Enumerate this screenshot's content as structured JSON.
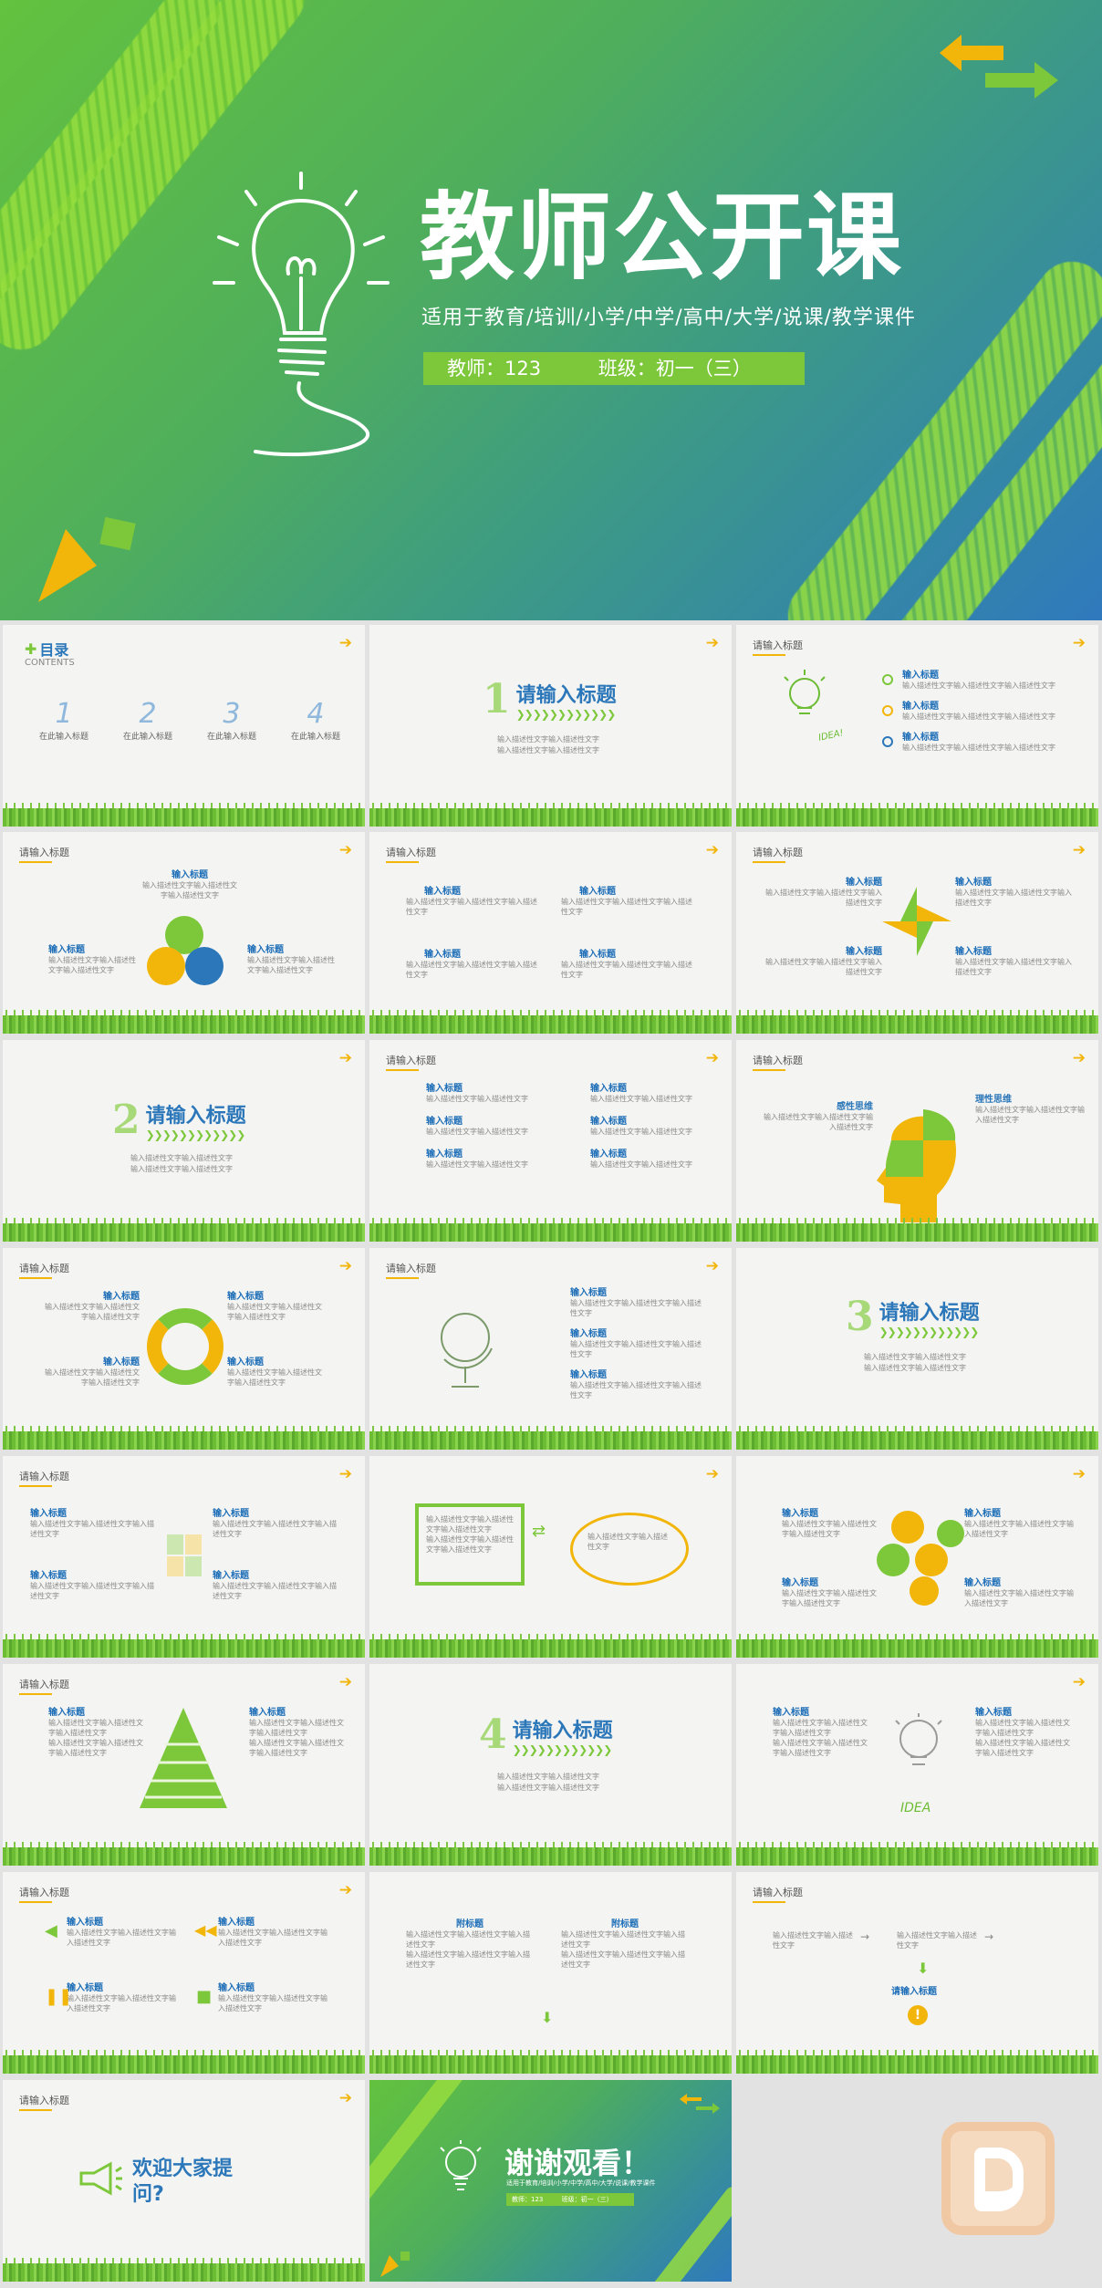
{
  "cover": {
    "title": "教师公开课",
    "subtitle": "适用于教育/培训/小学/中学/高中/大学/说课/教学课件",
    "teacher": "教师：123",
    "class": "班级：初一（三）"
  },
  "common": {
    "slide_header": "请输入标题",
    "input_heading": "输入标题",
    "body_text": "输入描述性文字输入描述性文字输入描述性文字",
    "body_short": "输入描述性文字输入描述性文字",
    "section_title": "请输入标题"
  },
  "toc": {
    "title": "目录",
    "subtitle": "CONTENTS",
    "items": [
      {
        "num": "1",
        "label": "在此输入标题"
      },
      {
        "num": "2",
        "label": "在此输入标题"
      },
      {
        "num": "3",
        "label": "在此输入标题"
      },
      {
        "num": "4",
        "label": "在此输入标题"
      }
    ]
  },
  "sections": [
    "1",
    "2",
    "3",
    "4"
  ],
  "head_labels": {
    "left": "感性思维",
    "right": "理性思维"
  },
  "idea_label": "IDEA!",
  "idea_label2": "IDEA",
  "sub_title": "附标题",
  "qa": "欢迎大家提问?",
  "thanks": {
    "title": "谢谢观看！",
    "subtitle": "适用于教育/培训/小学/中学/高中/大学/说课/教学课件",
    "teacher": "教师：123",
    "class": "班级：初一（三）"
  },
  "colors": {
    "green": "#7cc83a",
    "blue": "#2b77b9",
    "yellow": "#f2b50a"
  }
}
